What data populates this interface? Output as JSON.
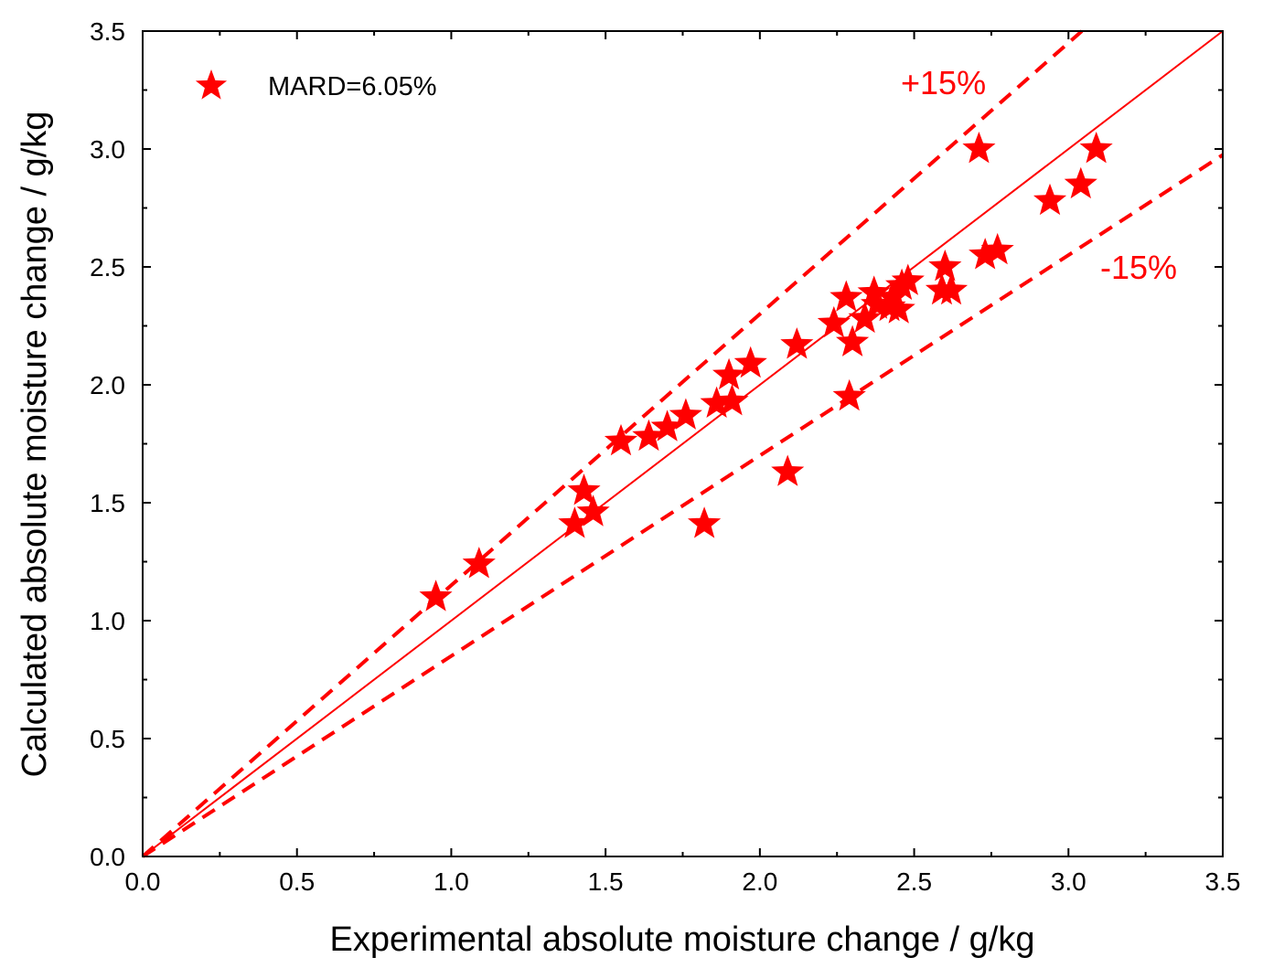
{
  "chart_data": {
    "type": "scatter",
    "xlabel": "Experimental absolute moisture change / g/kg",
    "ylabel": "Calculated absolute moisture change / g/kg",
    "xlim": [
      0,
      3.5
    ],
    "ylim": [
      0,
      3.5
    ],
    "x_ticks": [
      "0.0",
      "0.5",
      "1.0",
      "1.5",
      "2.0",
      "2.5",
      "3.0",
      "3.5"
    ],
    "y_ticks": [
      "0.0",
      "0.5",
      "1.0",
      "1.5",
      "2.0",
      "2.5",
      "3.0",
      "3.5"
    ],
    "grid": false,
    "legend_position": "top-left",
    "color": "#ff0000",
    "marker": "star",
    "series": [
      {
        "name": "MARD=6.05%",
        "points": [
          [
            0.95,
            1.1
          ],
          [
            1.09,
            1.24
          ],
          [
            1.4,
            1.41
          ],
          [
            1.43,
            1.55
          ],
          [
            1.46,
            1.46
          ],
          [
            1.55,
            1.76
          ],
          [
            1.64,
            1.78
          ],
          [
            1.7,
            1.82
          ],
          [
            1.76,
            1.87
          ],
          [
            1.86,
            1.92
          ],
          [
            1.9,
            2.04
          ],
          [
            1.91,
            1.93
          ],
          [
            1.97,
            2.09
          ],
          [
            1.82,
            1.41
          ],
          [
            2.09,
            1.63
          ],
          [
            2.12,
            2.17
          ],
          [
            2.24,
            2.26
          ],
          [
            2.28,
            2.37
          ],
          [
            2.29,
            1.95
          ],
          [
            2.3,
            2.18
          ],
          [
            2.34,
            2.28
          ],
          [
            2.37,
            2.39
          ],
          [
            2.38,
            2.34
          ],
          [
            2.42,
            2.33
          ],
          [
            2.43,
            2.37
          ],
          [
            2.45,
            2.32
          ],
          [
            2.46,
            2.42
          ],
          [
            2.48,
            2.44
          ],
          [
            2.59,
            2.4
          ],
          [
            2.6,
            2.5
          ],
          [
            2.62,
            2.4
          ],
          [
            2.71,
            3.0
          ],
          [
            2.73,
            2.55
          ],
          [
            2.77,
            2.57
          ],
          [
            2.94,
            2.78
          ],
          [
            3.04,
            2.85
          ],
          [
            3.09,
            3.0
          ]
        ]
      }
    ],
    "reference_lines": [
      {
        "kind": "y=x",
        "slope": 1.0,
        "style": "solid"
      },
      {
        "kind": "+15%",
        "slope": 1.15,
        "style": "dashed",
        "label": "+15%"
      },
      {
        "kind": "-15%",
        "slope": 0.85,
        "style": "dashed",
        "label": "-15%"
      }
    ]
  }
}
